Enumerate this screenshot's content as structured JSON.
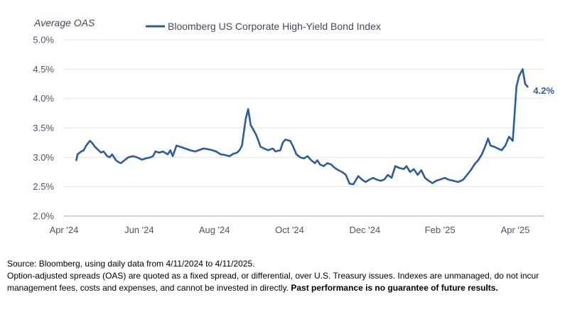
{
  "chart_data": {
    "type": "line",
    "ylabel": "Average OAS",
    "legend": "Bloomberg US Corporate High-Yield Bond Index",
    "legend_position": "top",
    "grid": true,
    "line_color": "#2e5c9a",
    "ylim": [
      2.0,
      5.0
    ],
    "y_ticks": [
      "2.0%",
      "2.5%",
      "3.0%",
      "3.5%",
      "4.0%",
      "4.5%",
      "5.0%"
    ],
    "x_ticks": [
      "Apr '24",
      "Jun '24",
      "Aug '24",
      "Oct '24",
      "Dec '24",
      "Feb '25",
      "Apr '25"
    ],
    "end_label": "4.2%",
    "series": [
      {
        "values": [
          [
            "2024-04-11",
            2.95
          ],
          [
            "2024-04-12",
            3.05
          ],
          [
            "2024-04-15",
            3.1
          ],
          [
            "2024-04-17",
            3.12
          ],
          [
            "2024-04-19",
            3.2
          ],
          [
            "2024-04-22",
            3.28
          ],
          [
            "2024-04-24",
            3.24
          ],
          [
            "2024-04-26",
            3.18
          ],
          [
            "2024-04-29",
            3.12
          ],
          [
            "2024-05-01",
            3.08
          ],
          [
            "2024-05-03",
            3.1
          ],
          [
            "2024-05-06",
            3.02
          ],
          [
            "2024-05-08",
            3.0
          ],
          [
            "2024-05-10",
            3.05
          ],
          [
            "2024-05-13",
            2.95
          ],
          [
            "2024-05-15",
            2.92
          ],
          [
            "2024-05-17",
            2.9
          ],
          [
            "2024-05-20",
            2.95
          ],
          [
            "2024-05-23",
            3.0
          ],
          [
            "2024-05-27",
            3.02
          ],
          [
            "2024-05-30",
            3.0
          ],
          [
            "2024-06-03",
            2.96
          ],
          [
            "2024-06-06",
            2.98
          ],
          [
            "2024-06-10",
            3.0
          ],
          [
            "2024-06-12",
            3.02
          ],
          [
            "2024-06-14",
            3.1
          ],
          [
            "2024-06-17",
            3.08
          ],
          [
            "2024-06-20",
            3.1
          ],
          [
            "2024-06-24",
            3.05
          ],
          [
            "2024-06-26",
            3.12
          ],
          [
            "2024-06-28",
            3.02
          ],
          [
            "2024-07-01",
            3.2
          ],
          [
            "2024-07-04",
            3.18
          ],
          [
            "2024-07-08",
            3.15
          ],
          [
            "2024-07-12",
            3.12
          ],
          [
            "2024-07-16",
            3.1
          ],
          [
            "2024-07-19",
            3.12
          ],
          [
            "2024-07-23",
            3.15
          ],
          [
            "2024-07-26",
            3.14
          ],
          [
            "2024-07-30",
            3.12
          ],
          [
            "2024-08-02",
            3.1
          ],
          [
            "2024-08-06",
            3.05
          ],
          [
            "2024-08-09",
            3.04
          ],
          [
            "2024-08-13",
            3.02
          ],
          [
            "2024-08-16",
            3.06
          ],
          [
            "2024-08-19",
            3.08
          ],
          [
            "2024-08-21",
            3.12
          ],
          [
            "2024-08-23",
            3.2
          ],
          [
            "2024-08-26",
            3.65
          ],
          [
            "2024-08-28",
            3.82
          ],
          [
            "2024-08-30",
            3.55
          ],
          [
            "2024-09-03",
            3.4
          ],
          [
            "2024-09-05",
            3.3
          ],
          [
            "2024-09-07",
            3.18
          ],
          [
            "2024-09-10",
            3.15
          ],
          [
            "2024-09-13",
            3.12
          ],
          [
            "2024-09-17",
            3.15
          ],
          [
            "2024-09-19",
            3.1
          ],
          [
            "2024-09-23",
            3.12
          ],
          [
            "2024-09-25",
            3.25
          ],
          [
            "2024-09-27",
            3.3
          ],
          [
            "2024-10-01",
            3.28
          ],
          [
            "2024-10-03",
            3.2
          ],
          [
            "2024-10-06",
            3.05
          ],
          [
            "2024-10-09",
            3.0
          ],
          [
            "2024-10-12",
            2.98
          ],
          [
            "2024-10-15",
            3.02
          ],
          [
            "2024-10-18",
            2.95
          ],
          [
            "2024-10-21",
            2.9
          ],
          [
            "2024-10-23",
            2.95
          ],
          [
            "2024-10-25",
            2.88
          ],
          [
            "2024-10-28",
            2.85
          ],
          [
            "2024-10-31",
            2.9
          ],
          [
            "2024-11-03",
            2.88
          ],
          [
            "2024-11-06",
            2.82
          ],
          [
            "2024-11-09",
            2.78
          ],
          [
            "2024-11-12",
            2.75
          ],
          [
            "2024-11-15",
            2.7
          ],
          [
            "2024-11-18",
            2.55
          ],
          [
            "2024-11-21",
            2.54
          ],
          [
            "2024-11-25",
            2.68
          ],
          [
            "2024-11-28",
            2.62
          ],
          [
            "2024-12-01",
            2.58
          ],
          [
            "2024-12-04",
            2.62
          ],
          [
            "2024-12-07",
            2.65
          ],
          [
            "2024-12-10",
            2.62
          ],
          [
            "2024-12-13",
            2.6
          ],
          [
            "2024-12-16",
            2.62
          ],
          [
            "2024-12-19",
            2.7
          ],
          [
            "2024-12-22",
            2.65
          ],
          [
            "2024-12-25",
            2.85
          ],
          [
            "2024-12-28",
            2.82
          ],
          [
            "2025-01-01",
            2.8
          ],
          [
            "2025-01-03",
            2.85
          ],
          [
            "2025-01-06",
            2.75
          ],
          [
            "2025-01-09",
            2.8
          ],
          [
            "2025-01-12",
            2.7
          ],
          [
            "2025-01-15",
            2.78
          ],
          [
            "2025-01-18",
            2.65
          ],
          [
            "2025-01-21",
            2.6
          ],
          [
            "2025-01-24",
            2.56
          ],
          [
            "2025-01-27",
            2.6
          ],
          [
            "2025-01-30",
            2.62
          ],
          [
            "2025-02-03",
            2.65
          ],
          [
            "2025-02-06",
            2.62
          ],
          [
            "2025-02-10",
            2.6
          ],
          [
            "2025-02-14",
            2.58
          ],
          [
            "2025-02-18",
            2.62
          ],
          [
            "2025-02-21",
            2.7
          ],
          [
            "2025-02-24",
            2.78
          ],
          [
            "2025-02-27",
            2.88
          ],
          [
            "2025-03-02",
            2.95
          ],
          [
            "2025-03-05",
            3.05
          ],
          [
            "2025-03-08",
            3.2
          ],
          [
            "2025-03-10",
            3.32
          ],
          [
            "2025-03-12",
            3.2
          ],
          [
            "2025-03-15",
            3.18
          ],
          [
            "2025-03-18",
            3.15
          ],
          [
            "2025-03-21",
            3.12
          ],
          [
            "2025-03-24",
            3.2
          ],
          [
            "2025-03-27",
            3.35
          ],
          [
            "2025-03-30",
            3.28
          ],
          [
            "2025-04-02",
            4.2
          ],
          [
            "2025-04-04",
            4.38
          ],
          [
            "2025-04-07",
            4.5
          ],
          [
            "2025-04-09",
            4.25
          ],
          [
            "2025-04-11",
            4.2
          ]
        ]
      }
    ]
  },
  "footer": {
    "source": "Source: Bloomberg, using daily data from 4/11/2024 to 4/11/2025.",
    "note": "Option-adjusted spreads (OAS) are quoted as a fixed spread, or differential, over U.S. Treasury issues. Indexes are unmanaged, do not incur management fees, costs and expenses, and cannot be invested in directly.",
    "disclaimer": "Past performance is no guarantee of future results."
  }
}
